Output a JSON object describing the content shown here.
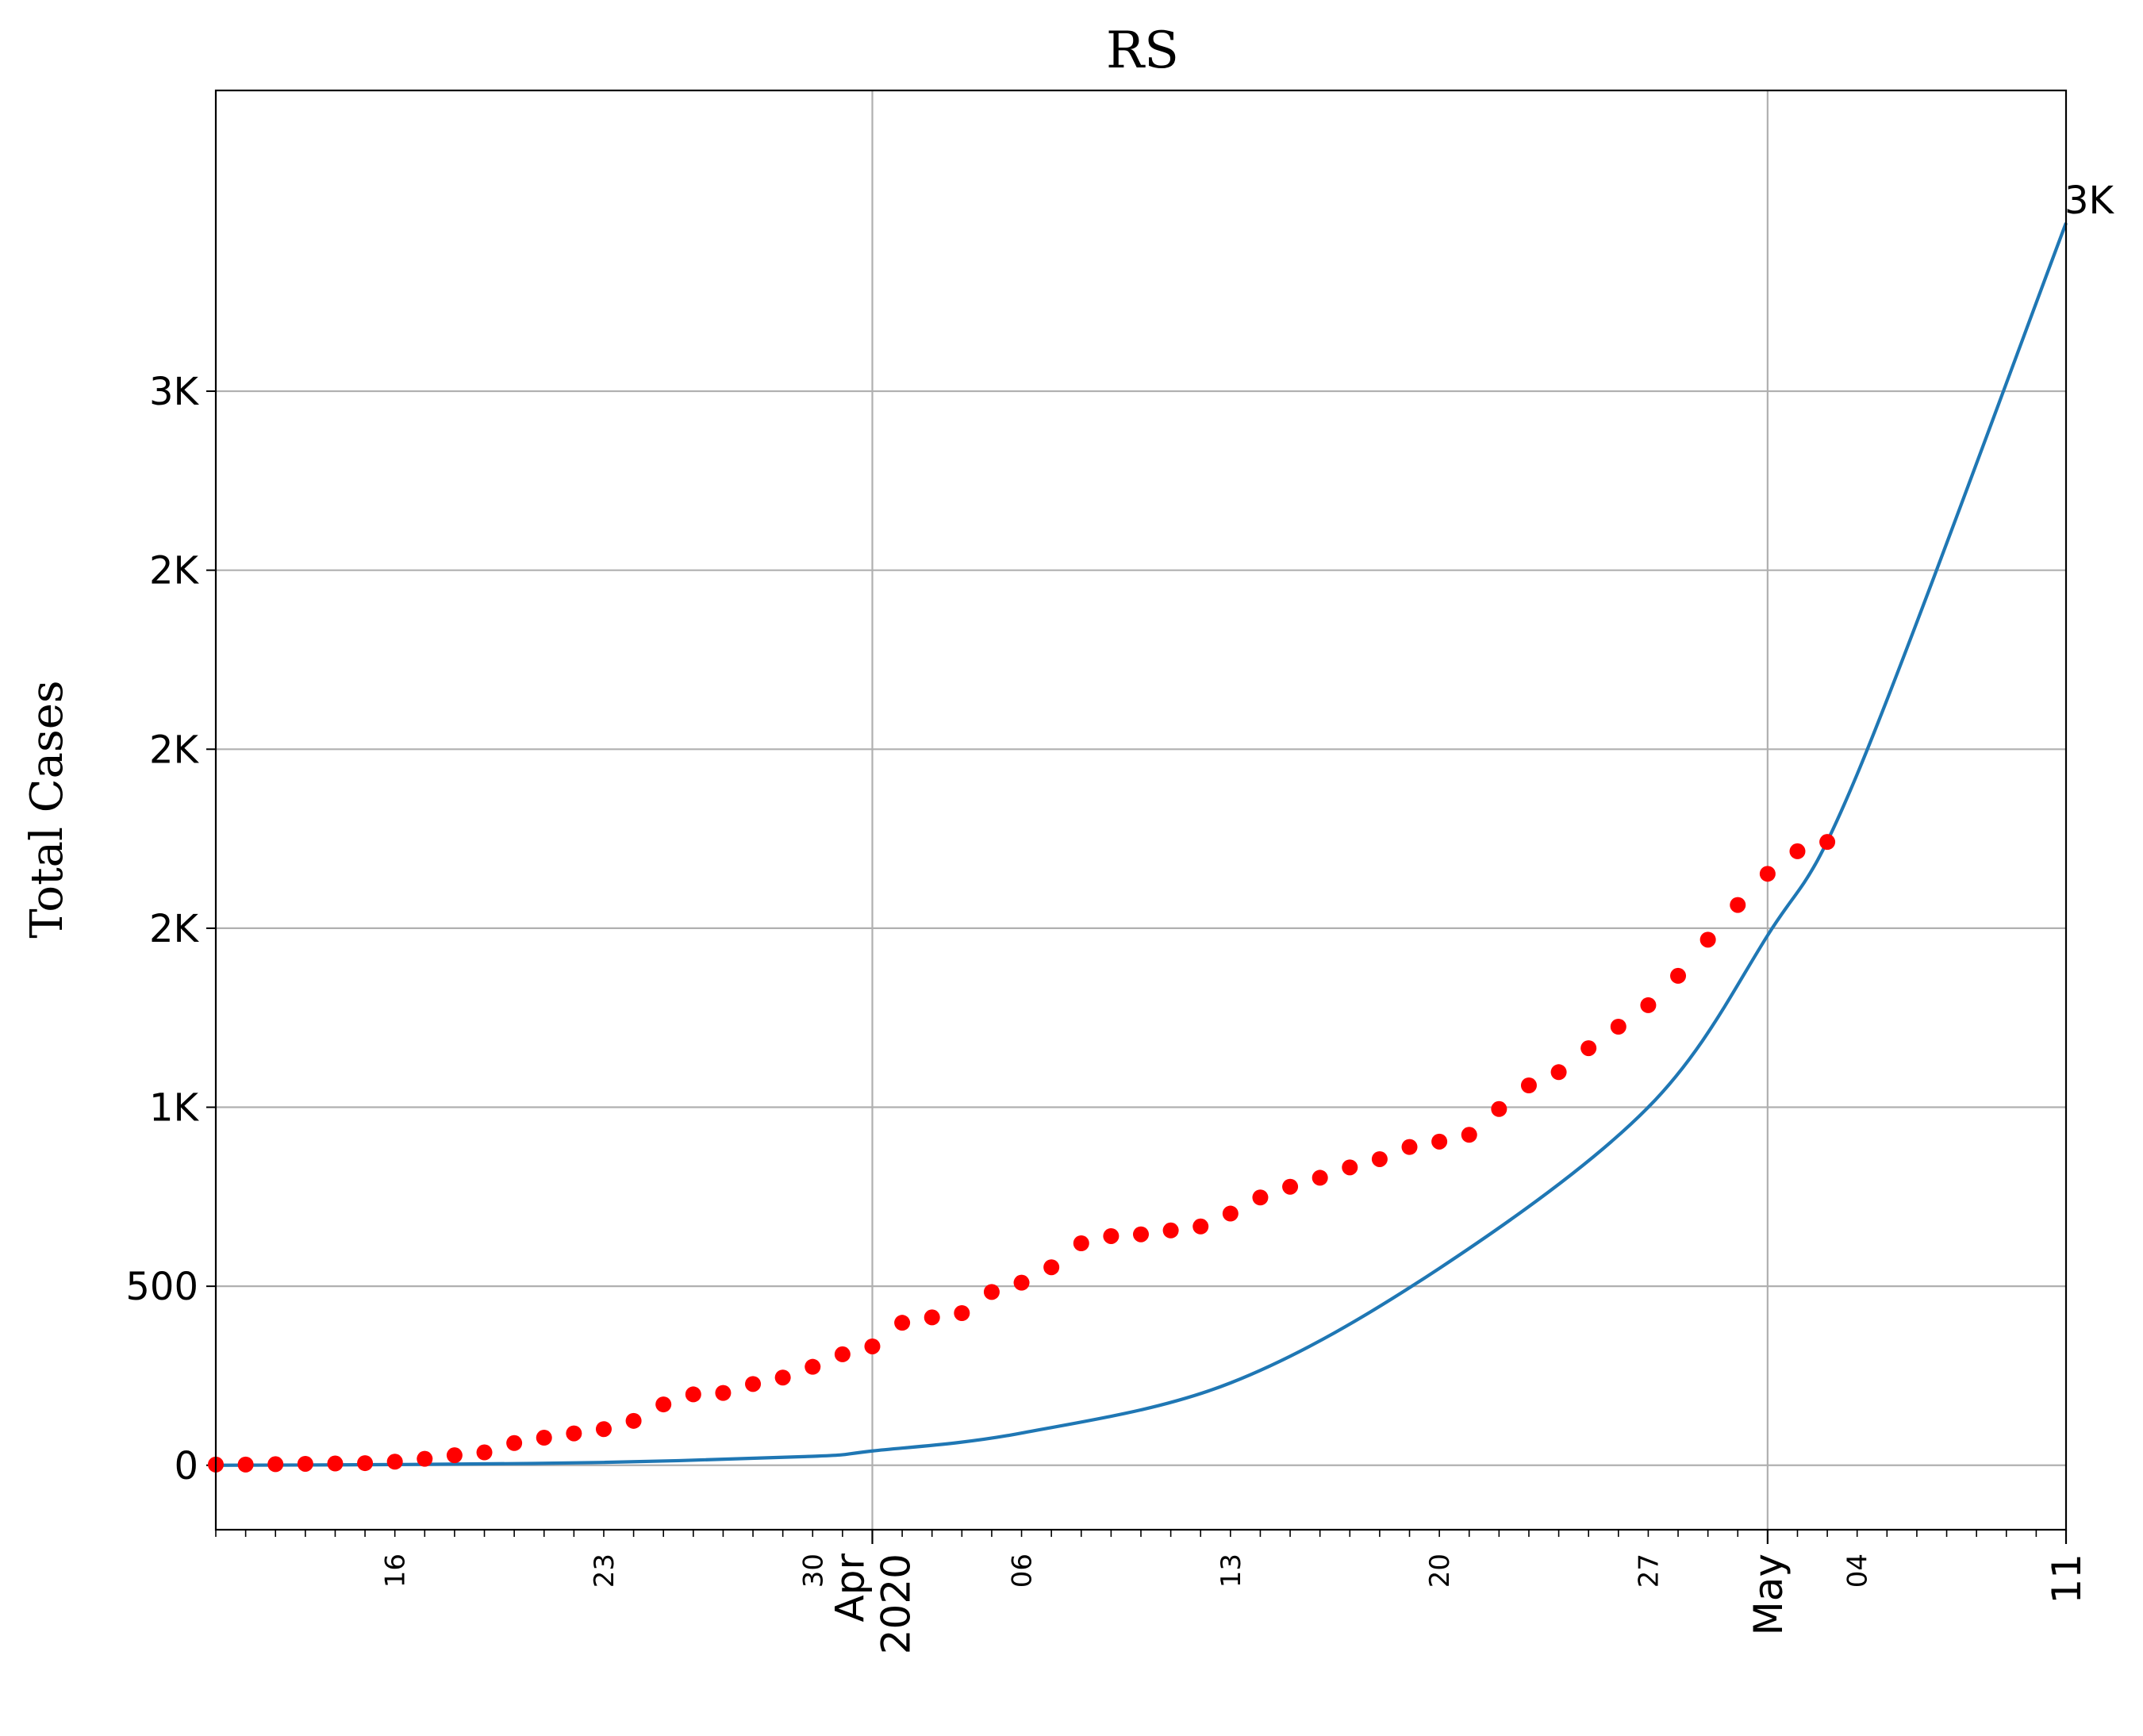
{
  "chart_data": {
    "type": "scatter",
    "title": "RS",
    "ylabel": "Total Cases",
    "xlabel": "",
    "x_range": [
      "2020-03-10",
      "2020-05-11"
    ],
    "ylim": [
      -180,
      3840
    ],
    "grid": true,
    "y_ticks": [
      {
        "value": 0,
        "label": "0"
      },
      {
        "value": 500,
        "label": "500"
      },
      {
        "value": 1000,
        "label": "1K"
      },
      {
        "value": 1500,
        "label": "2K"
      },
      {
        "value": 2000,
        "label": "2K"
      },
      {
        "value": 2500,
        "label": "2K"
      },
      {
        "value": 3000,
        "label": "3K"
      }
    ],
    "x_ticks_minor_labeled": [
      {
        "date": "2020-03-16",
        "label": "16"
      },
      {
        "date": "2020-03-23",
        "label": "23"
      },
      {
        "date": "2020-03-30",
        "label": "30"
      },
      {
        "date": "2020-04-06",
        "label": "06"
      },
      {
        "date": "2020-04-13",
        "label": "13"
      },
      {
        "date": "2020-04-20",
        "label": "20"
      },
      {
        "date": "2020-04-27",
        "label": "27"
      },
      {
        "date": "2020-05-04",
        "label": "04"
      }
    ],
    "x_ticks_major": [
      {
        "date": "2020-04-01",
        "label": "Apr\n2020"
      },
      {
        "date": "2020-05-01",
        "label": "May"
      },
      {
        "date": "2020-05-11",
        "label": "11"
      }
    ],
    "end_annotation": {
      "date": "2020-05-11",
      "value": 3470,
      "label": "3K"
    },
    "series": [
      {
        "kind": "scatter",
        "color": "#ff0000",
        "start_date": "2020-03-10",
        "values": [
          2,
          2,
          3,
          4,
          5,
          6,
          10,
          18,
          28,
          36,
          62,
          77,
          89,
          101,
          124,
          170,
          198,
          202,
          227,
          245,
          275,
          310,
          332,
          398,
          413,
          425,
          484,
          510,
          553,
          620,
          640,
          645,
          656,
          667,
          703,
          748,
          778,
          803,
          832,
          855,
          889,
          904,
          923,
          995,
          1061,
          1098,
          1165,
          1225,
          1285,
          1367,
          1468,
          1565,
          1652,
          1715,
          1741
        ]
      },
      {
        "kind": "line",
        "color": "#1f77b4",
        "x": [
          "2020-03-10",
          "2020-03-16",
          "2020-03-23",
          "2020-03-30",
          "2020-04-01",
          "2020-04-06",
          "2020-04-13",
          "2020-04-20",
          "2020-04-27",
          "2020-05-01",
          "2020-05-04",
          "2020-05-11"
        ],
        "values": [
          0,
          2,
          8,
          25,
          40,
          90,
          230,
          550,
          1000,
          1480,
          1930,
          3470
        ]
      }
    ]
  }
}
